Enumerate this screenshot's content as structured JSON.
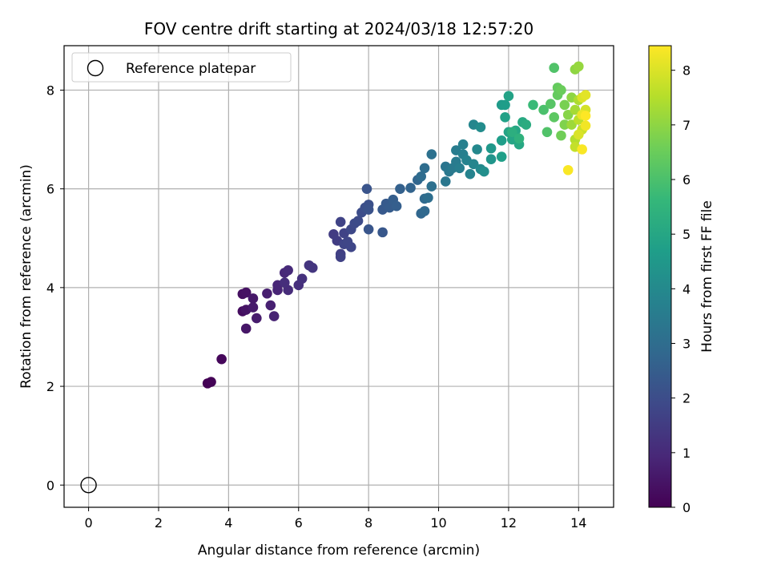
{
  "chart_data": {
    "type": "scatter",
    "title": "FOV centre drift starting at 2024/03/18 12:57:20",
    "xlabel": "Angular distance from reference (arcmin)",
    "ylabel": "Rotation from reference (arcmin)",
    "xlim": [
      -0.7,
      15.0
    ],
    "ylim": [
      -0.45,
      8.9
    ],
    "xticks": [
      "0",
      "2",
      "4",
      "6",
      "8",
      "10",
      "12",
      "14"
    ],
    "yticks": [
      "0",
      "2",
      "4",
      "6",
      "8"
    ],
    "grid": true,
    "legend": {
      "placement": "top-left",
      "entries": [
        "Reference platepar"
      ]
    },
    "reference_point": {
      "x": 0,
      "y": 0
    },
    "colorbar": {
      "label": "Hours from first FF file",
      "range": [
        0,
        8.45
      ],
      "ticks": [
        "0",
        "1",
        "2",
        "3",
        "4",
        "5",
        "6",
        "7",
        "8"
      ],
      "colormap": "viridis",
      "colors": [
        "#440154",
        "#482878",
        "#3e4989",
        "#31688e",
        "#26828e",
        "#1f9e89",
        "#35b779",
        "#6ece58",
        "#b5de2b",
        "#fde725"
      ]
    },
    "series": [
      {
        "points": [
          [
            3.4,
            2.06,
            0.0
          ],
          [
            3.5,
            2.09,
            0.05
          ],
          [
            3.8,
            2.55,
            0.15
          ],
          [
            4.4,
            3.52,
            0.3
          ],
          [
            4.4,
            3.87,
            0.35
          ],
          [
            4.5,
            3.9,
            0.4
          ],
          [
            4.5,
            3.55,
            0.45
          ],
          [
            4.5,
            3.17,
            0.5
          ],
          [
            4.7,
            3.78,
            0.55
          ],
          [
            4.7,
            3.6,
            0.6
          ],
          [
            4.8,
            3.38,
            0.65
          ],
          [
            5.1,
            3.88,
            0.7
          ],
          [
            5.2,
            3.64,
            0.75
          ],
          [
            5.3,
            3.42,
            0.8
          ],
          [
            5.4,
            3.95,
            0.85
          ],
          [
            5.4,
            4.05,
            0.9
          ],
          [
            5.6,
            4.3,
            0.95
          ],
          [
            5.7,
            4.35,
            1.0
          ],
          [
            5.7,
            3.95,
            1.05
          ],
          [
            5.6,
            4.1,
            1.1
          ],
          [
            6.0,
            4.05,
            1.15
          ],
          [
            6.1,
            4.18,
            1.2
          ],
          [
            6.3,
            4.45,
            1.3
          ],
          [
            6.4,
            4.4,
            1.35
          ],
          [
            7.0,
            5.08,
            1.5
          ],
          [
            7.1,
            4.95,
            1.55
          ],
          [
            7.2,
            4.68,
            1.6
          ],
          [
            7.2,
            4.62,
            1.65
          ],
          [
            7.2,
            5.33,
            1.7
          ],
          [
            7.3,
            5.1,
            1.72
          ],
          [
            7.3,
            4.88,
            1.75
          ],
          [
            7.4,
            4.93,
            1.78
          ],
          [
            7.5,
            4.82,
            1.8
          ],
          [
            7.5,
            5.18,
            1.85
          ],
          [
            7.6,
            5.3,
            1.9
          ],
          [
            7.7,
            5.35,
            1.95
          ],
          [
            7.8,
            5.52,
            2.0
          ],
          [
            7.9,
            5.62,
            2.05
          ],
          [
            8.0,
            5.68,
            2.1
          ],
          [
            8.0,
            5.58,
            2.15
          ],
          [
            7.95,
            6.0,
            2.2
          ],
          [
            8.0,
            5.18,
            2.25
          ],
          [
            8.4,
            5.12,
            2.3
          ],
          [
            8.4,
            5.58,
            2.35
          ],
          [
            8.5,
            5.7,
            2.4
          ],
          [
            8.6,
            5.62,
            2.45
          ],
          [
            8.7,
            5.78,
            2.5
          ],
          [
            8.8,
            5.65,
            2.55
          ],
          [
            8.9,
            6.0,
            2.6
          ],
          [
            9.2,
            6.02,
            2.7
          ],
          [
            9.4,
            6.18,
            2.75
          ],
          [
            9.5,
            5.5,
            2.8
          ],
          [
            9.6,
            5.55,
            2.85
          ],
          [
            9.6,
            5.8,
            2.9
          ],
          [
            9.5,
            6.25,
            2.95
          ],
          [
            9.6,
            6.42,
            3.0
          ],
          [
            9.7,
            5.82,
            3.05
          ],
          [
            9.8,
            6.05,
            3.1
          ],
          [
            9.8,
            6.7,
            3.15
          ],
          [
            10.2,
            6.45,
            3.3
          ],
          [
            10.2,
            6.15,
            3.35
          ],
          [
            10.3,
            6.35,
            3.4
          ],
          [
            10.4,
            6.42,
            3.45
          ],
          [
            10.5,
            6.55,
            3.5
          ],
          [
            10.5,
            6.78,
            3.55
          ],
          [
            10.6,
            6.42,
            3.6
          ],
          [
            10.7,
            6.7,
            3.65
          ],
          [
            10.7,
            6.9,
            3.7
          ],
          [
            10.8,
            6.58,
            3.75
          ],
          [
            10.9,
            6.3,
            3.8
          ],
          [
            11.0,
            6.5,
            3.85
          ],
          [
            11.0,
            7.3,
            3.9
          ],
          [
            11.1,
            6.8,
            3.95
          ],
          [
            11.2,
            6.4,
            4.0
          ],
          [
            11.2,
            7.25,
            4.1
          ],
          [
            11.3,
            6.35,
            4.2
          ],
          [
            11.5,
            6.6,
            4.4
          ],
          [
            11.5,
            6.82,
            4.5
          ],
          [
            11.8,
            7.7,
            4.6
          ],
          [
            11.9,
            7.7,
            4.65
          ],
          [
            11.8,
            6.98,
            4.7
          ],
          [
            11.8,
            6.65,
            4.75
          ],
          [
            11.9,
            7.45,
            4.8
          ],
          [
            12.0,
            7.88,
            4.85
          ],
          [
            12.0,
            7.15,
            4.9
          ],
          [
            12.1,
            7.0,
            4.95
          ],
          [
            12.2,
            7.18,
            5.0
          ],
          [
            12.3,
            6.9,
            5.05
          ],
          [
            12.4,
            7.35,
            5.1
          ],
          [
            12.5,
            7.3,
            5.2
          ],
          [
            12.1,
            7.15,
            5.3
          ],
          [
            12.3,
            7.02,
            5.4
          ],
          [
            12.7,
            7.7,
            5.7
          ],
          [
            13.0,
            7.6,
            6.0
          ],
          [
            13.1,
            7.15,
            6.1
          ],
          [
            13.3,
            8.45,
            6.1
          ],
          [
            13.2,
            7.72,
            6.2
          ],
          [
            13.3,
            7.45,
            6.3
          ],
          [
            13.4,
            7.9,
            6.4
          ],
          [
            13.4,
            8.05,
            6.4
          ],
          [
            13.5,
            8.0,
            6.5
          ],
          [
            13.5,
            7.08,
            6.6
          ],
          [
            13.6,
            7.7,
            6.7
          ],
          [
            13.6,
            7.3,
            6.8
          ],
          [
            13.7,
            7.5,
            6.9
          ],
          [
            13.8,
            7.85,
            7.0
          ],
          [
            13.9,
            8.42,
            7.0
          ],
          [
            14.0,
            8.48,
            7.1
          ],
          [
            13.8,
            7.3,
            7.2
          ],
          [
            13.9,
            7.6,
            7.3
          ],
          [
            14.0,
            7.8,
            7.4
          ],
          [
            13.9,
            7.0,
            7.5
          ],
          [
            14.0,
            7.4,
            7.6
          ],
          [
            13.9,
            6.85,
            7.7
          ],
          [
            14.1,
            7.2,
            7.8
          ],
          [
            14.2,
            7.6,
            7.9
          ],
          [
            14.0,
            7.1,
            8.0
          ],
          [
            14.1,
            7.85,
            8.0
          ],
          [
            14.2,
            7.9,
            8.1
          ],
          [
            14.1,
            7.5,
            8.2
          ],
          [
            14.2,
            7.28,
            8.3
          ],
          [
            14.1,
            6.8,
            8.4
          ],
          [
            13.7,
            6.38,
            8.4
          ],
          [
            14.2,
            7.48,
            8.45
          ]
        ]
      }
    ]
  }
}
